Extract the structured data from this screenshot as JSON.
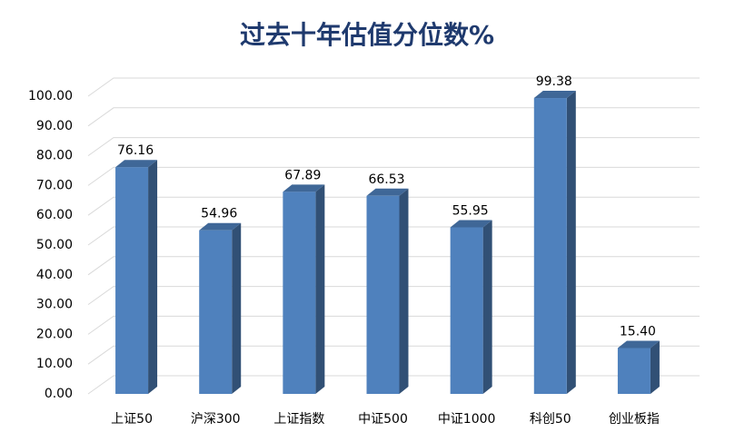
{
  "chart_data": {
    "type": "bar3d",
    "title": "过去十年估值分位数%",
    "categories": [
      "上证50",
      "沪深300",
      "上证指数",
      "中证500",
      "中证1000",
      "科创50",
      "创业板指"
    ],
    "values": [
      76.16,
      54.96,
      67.89,
      66.53,
      55.95,
      99.38,
      15.4
    ],
    "value_labels": [
      "76.16",
      "54.96",
      "67.89",
      "66.53",
      "55.95",
      "99.38",
      "15.40"
    ],
    "color": "#4f81bd",
    "ylim": [
      0,
      100
    ],
    "yticks": [
      {
        "value": 0,
        "label": "0.00"
      },
      {
        "value": 10,
        "label": "10.00"
      },
      {
        "value": 20,
        "label": "20.00"
      },
      {
        "value": 30,
        "label": "30.00"
      },
      {
        "value": 40,
        "label": "40.00"
      },
      {
        "value": 50,
        "label": "50.00"
      },
      {
        "value": 60,
        "label": "60.00"
      },
      {
        "value": 70,
        "label": "70.00"
      },
      {
        "value": 80,
        "label": "80.00"
      },
      {
        "value": 90,
        "label": "90.00"
      },
      {
        "value": 100,
        "label": "100.00"
      }
    ],
    "grid": true
  }
}
